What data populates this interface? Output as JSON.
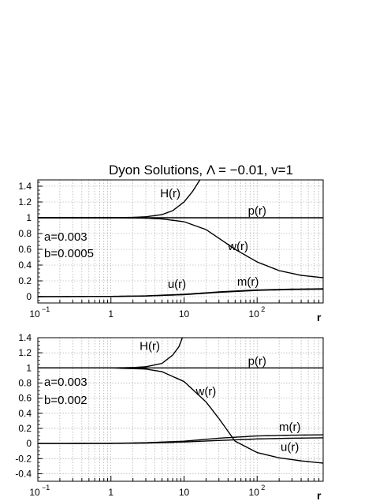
{
  "chart_data": [
    {
      "type": "line",
      "title": "Dyon Solutions, Λ = −0.01, v=1",
      "xlabel": "r",
      "xscale": "log",
      "xlim": [
        0.1,
        800
      ],
      "ylim": [
        -0.08,
        1.48
      ],
      "grid": true,
      "xticks": [
        {
          "value": 0.1,
          "base": "10",
          "exp": "−1"
        },
        {
          "value": 1,
          "base": "1",
          "exp": ""
        },
        {
          "value": 10,
          "base": "10",
          "exp": ""
        },
        {
          "value": 100,
          "base": "10",
          "exp": "2"
        }
      ],
      "yticks": [
        {
          "value": 0,
          "label": "0"
        },
        {
          "value": 0.2,
          "label": "0.2"
        },
        {
          "value": 0.4,
          "label": "0.4"
        },
        {
          "value": 0.6,
          "label": "0.6"
        },
        {
          "value": 0.8,
          "label": "0.8"
        },
        {
          "value": 1,
          "label": "1"
        },
        {
          "value": 1.2,
          "label": "1.2"
        },
        {
          "value": 1.4,
          "label": "1.4"
        }
      ],
      "params": [
        "a=0.003",
        "b=0.0005"
      ],
      "series": [
        {
          "name": "H(r)",
          "label_at": [
            6.5,
            1.26
          ],
          "x": [
            0.1,
            1,
            2,
            3,
            5,
            7,
            10,
            13,
            15,
            17
          ],
          "y": [
            1.0,
            1.0,
            1.005,
            1.012,
            1.04,
            1.09,
            1.2,
            1.33,
            1.42,
            1.5
          ]
        },
        {
          "name": "p(r)",
          "label_at": [
            100,
            1.04
          ],
          "x": [
            0.1,
            1,
            10,
            100,
            800
          ],
          "y": [
            1.0,
            1.0,
            1.0,
            1.0,
            1.0
          ]
        },
        {
          "name": "w(r)",
          "label_at": [
            55,
            0.59
          ],
          "x": [
            0.1,
            1,
            3,
            5,
            10,
            20,
            30,
            50,
            100,
            200,
            400,
            800
          ],
          "y": [
            1.0,
            1.0,
            0.995,
            0.985,
            0.95,
            0.85,
            0.74,
            0.6,
            0.44,
            0.33,
            0.27,
            0.24
          ]
        },
        {
          "name": "u(r)",
          "label_at": [
            8,
            0.11
          ],
          "x": [
            0.1,
            1,
            3,
            10,
            30,
            100,
            300,
            800
          ],
          "y": [
            0.0,
            0.003,
            0.01,
            0.03,
            0.06,
            0.085,
            0.095,
            0.1
          ]
        },
        {
          "name": "m(r)",
          "label_at": [
            75,
            0.14
          ],
          "x": [
            0.1,
            1,
            3,
            10,
            30,
            100,
            300,
            800
          ],
          "y": [
            0.0,
            0.002,
            0.008,
            0.025,
            0.055,
            0.08,
            0.09,
            0.095
          ]
        }
      ]
    },
    {
      "type": "line",
      "title": "",
      "xlabel": "r",
      "xscale": "log",
      "xlim": [
        0.1,
        800
      ],
      "ylim": [
        -0.5,
        1.4
      ],
      "grid": true,
      "xticks": [
        {
          "value": 0.1,
          "base": "10",
          "exp": "−1"
        },
        {
          "value": 1,
          "base": "1",
          "exp": ""
        },
        {
          "value": 10,
          "base": "10",
          "exp": ""
        },
        {
          "value": 100,
          "base": "10",
          "exp": "2"
        }
      ],
      "yticks": [
        {
          "value": -0.4,
          "label": "-0.4"
        },
        {
          "value": -0.2,
          "label": "-0.2"
        },
        {
          "value": 0,
          "label": "0"
        },
        {
          "value": 0.2,
          "label": "0.2"
        },
        {
          "value": 0.4,
          "label": "0.4"
        },
        {
          "value": 0.6,
          "label": "0.6"
        },
        {
          "value": 0.8,
          "label": "0.8"
        },
        {
          "value": 1,
          "label": "1"
        },
        {
          "value": 1.2,
          "label": "1.2"
        },
        {
          "value": 1.4,
          "label": "1.4"
        }
      ],
      "params": [
        "a=0.003",
        "b=0.002"
      ],
      "series": [
        {
          "name": "H(r)",
          "label_at": [
            3.4,
            1.24
          ],
          "x": [
            0.1,
            1,
            2,
            3,
            5,
            7,
            8.5,
            9.5
          ],
          "y": [
            1.0,
            1.0,
            1.005,
            1.015,
            1.06,
            1.17,
            1.28,
            1.4
          ]
        },
        {
          "name": "p(r)",
          "label_at": [
            100,
            1.04
          ],
          "x": [
            0.1,
            1,
            10,
            100,
            800
          ],
          "y": [
            1.0,
            1.0,
            1.0,
            1.0,
            1.0
          ]
        },
        {
          "name": "w(r)",
          "label_at": [
            20,
            0.64
          ],
          "x": [
            0.1,
            1,
            3,
            5,
            10,
            20,
            30,
            50,
            100,
            200,
            400,
            800
          ],
          "y": [
            1.0,
            1.0,
            0.985,
            0.95,
            0.82,
            0.55,
            0.33,
            0.03,
            -0.12,
            -0.19,
            -0.23,
            -0.26
          ]
        },
        {
          "name": "m(r)",
          "label_at": [
            280,
            0.17
          ],
          "x": [
            0.1,
            1,
            3,
            10,
            30,
            100,
            300,
            800
          ],
          "y": [
            0.0,
            0.002,
            0.01,
            0.03,
            0.07,
            0.1,
            0.11,
            0.115
          ]
        },
        {
          "name": "u(r)",
          "label_at": [
            280,
            -0.1
          ],
          "x": [
            0.1,
            1,
            3,
            10,
            30,
            100,
            300,
            800
          ],
          "y": [
            0.0,
            0.001,
            0.005,
            0.02,
            0.04,
            0.06,
            0.07,
            0.075
          ]
        }
      ]
    }
  ]
}
